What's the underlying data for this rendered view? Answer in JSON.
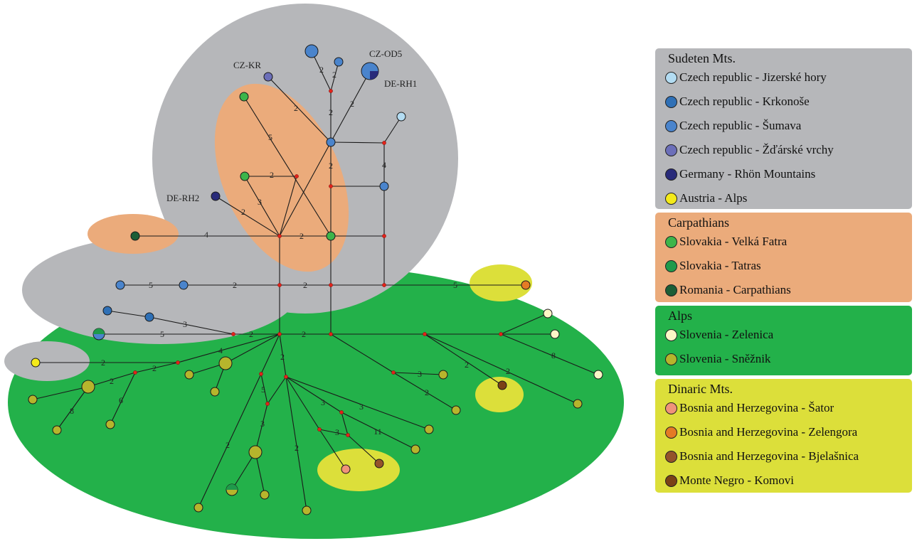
{
  "colors": {
    "sudeten_bg": "#b6b7ba",
    "carpathians_bg": "#ebab7b",
    "alps_bg": "#23b14a",
    "dinaric_bg": "#dcdf3a",
    "edge": "#1a1a1a",
    "median_vector": "#e2231a"
  },
  "legend": {
    "groups": [
      {
        "title": "Sudeten Mts.",
        "bg": "#b6b7ba",
        "items": [
          {
            "label": "Czech republic - Jizerské hory",
            "color": "#b3dcf2"
          },
          {
            "label": "Czech republic - Krkonoše",
            "color": "#2f70b6"
          },
          {
            "label": "Czech republic - Šumava",
            "color": "#4a84cc"
          },
          {
            "label": "Czech republic - Žďárské vrchy",
            "color": "#6c6fb9"
          },
          {
            "label": "Germany - Rhön Mountains",
            "color": "#292b7a"
          },
          {
            "label": "Austria - Alps",
            "color": "#f4ea1a"
          }
        ]
      },
      {
        "title": "Carpathians",
        "bg": "#ebab7b",
        "items": [
          {
            "label": "Slovakia - Velká Fatra",
            "color": "#3db54a"
          },
          {
            "label": "Slovakia - Tatras",
            "color": "#1f9a4b"
          },
          {
            "label": "Romania - Carpathians",
            "color": "#1c5e36"
          }
        ]
      },
      {
        "title": "Alps",
        "bg": "#23b14a",
        "items": [
          {
            "label": "Slovenia - Zelenica",
            "color": "#fbf7c6"
          },
          {
            "label": "Slovenia - Sněžnik",
            "color": "#b6b52c"
          }
        ]
      },
      {
        "title": "Dinaric Mts.",
        "bg": "#dcdf3a",
        "items": [
          {
            "label": "Bosnia and Herzegovina - Šator",
            "color": "#f0937a"
          },
          {
            "label": "Bosnia and Herzegovina - Zelengora",
            "color": "#e47b25"
          },
          {
            "label": "Bosnia and Herzegovina - Bjelašnica",
            "color": "#94532a"
          },
          {
            "label": "Monte Negro - Komovi",
            "color": "#7a4216"
          }
        ]
      }
    ]
  },
  "node_labels": {
    "cz_kr": "CZ-KR",
    "cz_od5": "CZ-OD5",
    "de_rh1": "DE-RH1",
    "de_rh2": "DE-RH2"
  },
  "edge_labels": [
    "4",
    "2",
    "2",
    "2",
    "3",
    "5",
    "2",
    "2",
    "2",
    "2",
    "2",
    "2",
    "4",
    "2",
    "5",
    "2",
    "5",
    "3",
    "5",
    "2",
    "2",
    "8",
    "2",
    "2",
    "3",
    "2",
    "4",
    "2",
    "2",
    "2",
    "6",
    "8",
    "2",
    "5",
    "2",
    "3",
    "2",
    "3",
    "3",
    "11",
    "3",
    "5"
  ]
}
